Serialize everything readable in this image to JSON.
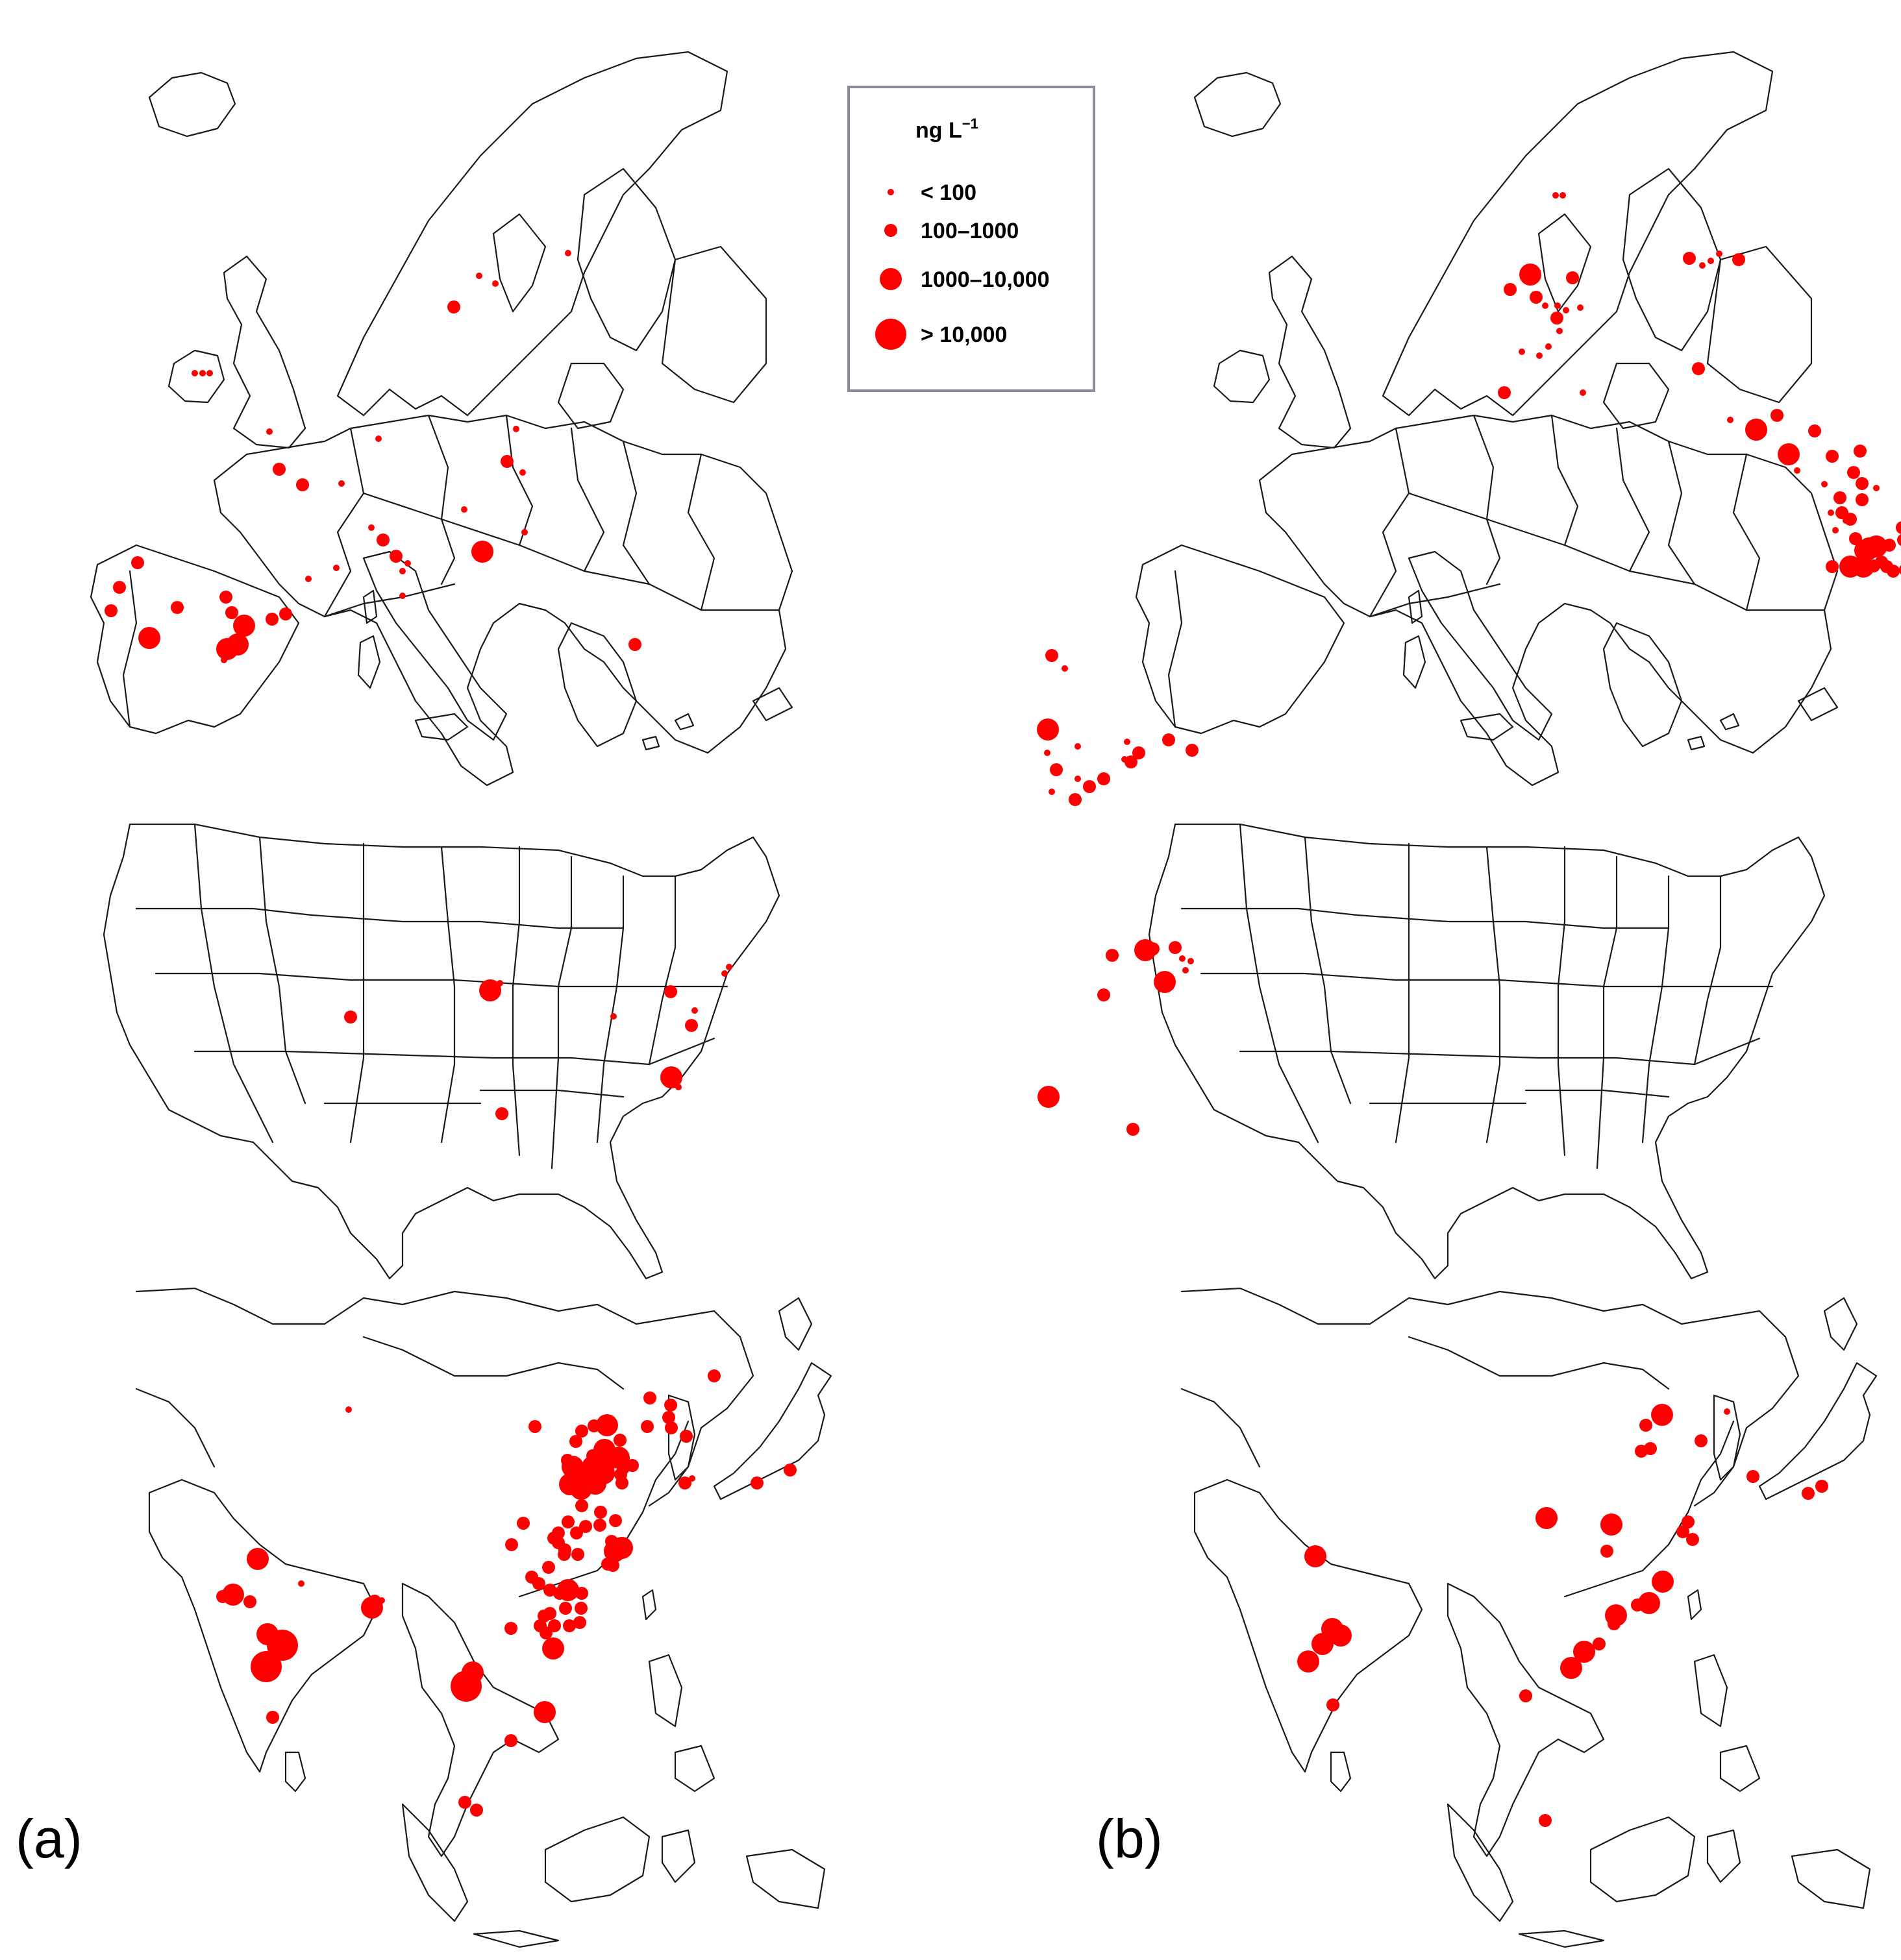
{
  "legend": {
    "title": "ng L",
    "title_superscript": "−1",
    "classes": [
      {
        "label": "< 100",
        "size_class": 1
      },
      {
        "label": "100–1000",
        "size_class": 2
      },
      {
        "label": "1000–10,000",
        "size_class": 3
      },
      {
        "label": "> 10,000",
        "size_class": 4
      }
    ]
  },
  "panels": [
    {
      "label": "(a)"
    },
    {
      "label": "(b)"
    }
  ],
  "colors": {
    "dot": "#ff0000",
    "outline": "#1a1a1a"
  },
  "icons": {
    "marker": "red-circle-icon"
  }
}
